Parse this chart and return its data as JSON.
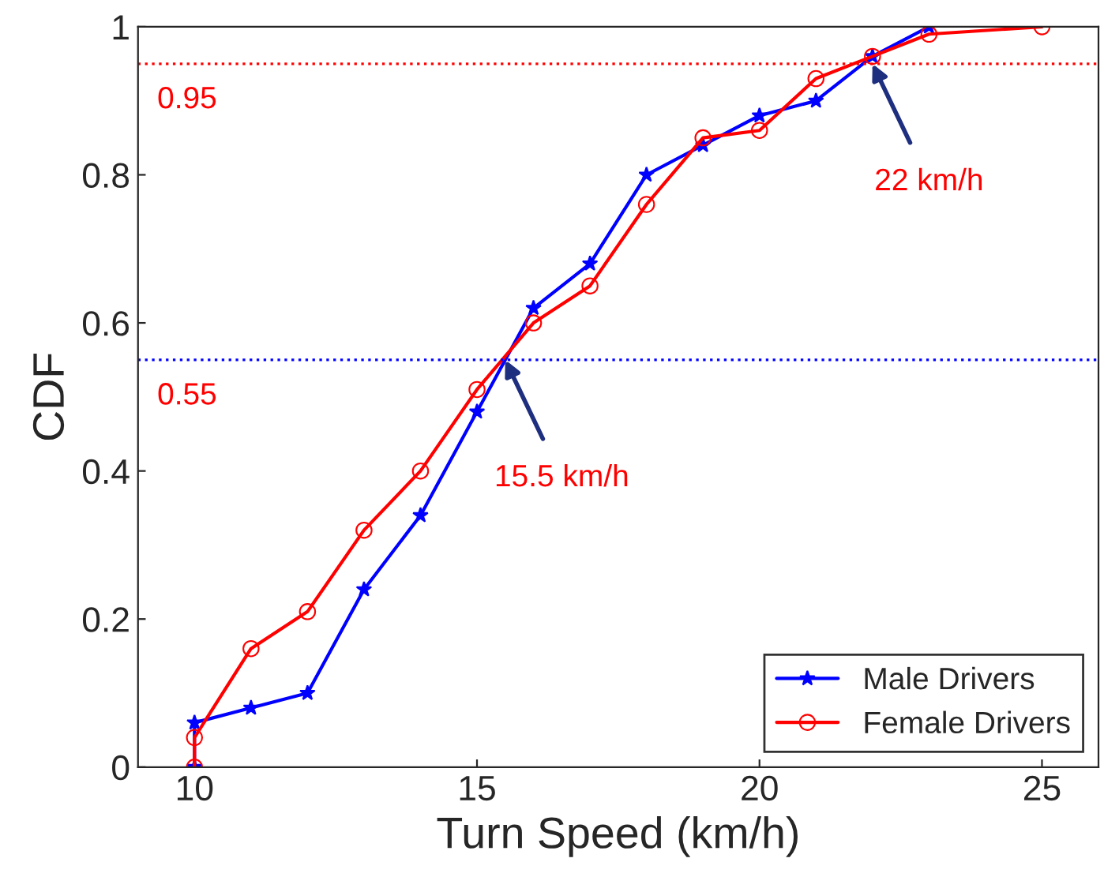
{
  "chart_data": {
    "type": "line",
    "xlabel": "Turn Speed (km/h)",
    "ylabel": "CDF",
    "xlim": [
      9,
      26
    ],
    "xticks": [
      10,
      15,
      20,
      25
    ],
    "ylim": [
      0,
      1
    ],
    "yticks": [
      0,
      0.2,
      0.4,
      0.6,
      0.8,
      1
    ],
    "grid": false,
    "legend": "bottom right",
    "line_style": "solid",
    "series": [
      {
        "name": "Male Drivers",
        "color": "#0000ff",
        "marker": "star",
        "x": [
          10,
          10,
          11,
          12,
          13,
          14,
          15,
          16,
          17,
          18,
          19,
          20,
          21,
          22,
          23
        ],
        "values": [
          0,
          0.06,
          0.08,
          0.1,
          0.24,
          0.34,
          0.48,
          0.62,
          0.68,
          0.8,
          0.84,
          0.88,
          0.9,
          0.96,
          1.0
        ]
      },
      {
        "name": "Female Drivers",
        "color": "#ff0000",
        "marker": "circle",
        "x": [
          10,
          10,
          11,
          12,
          13,
          14,
          15,
          16,
          17,
          18,
          19,
          20,
          21,
          22,
          23,
          25
        ],
        "values": [
          0,
          0.04,
          0.16,
          0.21,
          0.32,
          0.4,
          0.51,
          0.6,
          0.65,
          0.76,
          0.85,
          0.86,
          0.93,
          0.96,
          0.99,
          1.0
        ]
      }
    ],
    "ref_lines": [
      {
        "axis": "y",
        "value": 0.95,
        "label": "0.95",
        "color": "#ff0000",
        "line_style": "dotted"
      },
      {
        "axis": "y",
        "value": 0.55,
        "label": "0.55",
        "color": "#0000ff",
        "line_style": "dotted"
      }
    ],
    "annotations": [
      {
        "text": "15.5 km/h",
        "x": 15.5,
        "y": 0.55
      },
      {
        "text": "22 km/h",
        "x": 22,
        "y": 0.95
      }
    ]
  }
}
